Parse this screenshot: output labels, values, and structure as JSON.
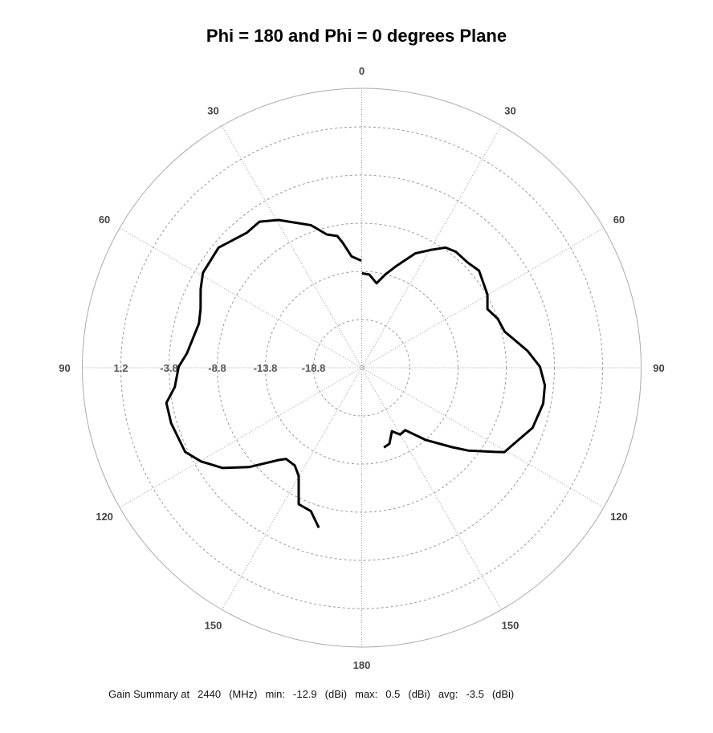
{
  "chart_data": {
    "type": "polar-line",
    "title": "Phi = 180 and Phi = 0 degrees Plane",
    "angle_unit": "degrees (theta)",
    "angle_zero": "top",
    "angle_ticks_left": [
      "30",
      "60",
      "90",
      "120",
      "150"
    ],
    "angle_ticks_right": [
      "30",
      "60",
      "90",
      "120",
      "150"
    ],
    "angle_tick_top": "0",
    "angle_tick_bottom": "180",
    "radial_ticks": [
      "1.2",
      "-3.8",
      "-8.8",
      "-13.8",
      "-18.8"
    ],
    "radial_tick_values": [
      1.2,
      -3.8,
      -8.8,
      -13.8,
      -18.8
    ],
    "rlim": [
      -23.8,
      5.2
    ],
    "grid": true,
    "line_color": "#000000",
    "grid_color": "#999999",
    "series": [
      {
        "side": "left (Phi = 180)",
        "theta": [
          0.2,
          5.2,
          8.6,
          10.5,
          14.7,
          19.6,
          29.4,
          35.0,
          40.5,
          50.0,
          59.1,
          64.0,
          70.0,
          74.8,
          85.3,
          89.7,
          95.9,
          100.2,
          106.2,
          115.5,
          120.3,
          125.8,
          131.4,
          138.0,
          140.3,
          145.6,
          149.8,
          155.2,
          160.5,
          165.0
        ],
        "gain_dBi": [
          -12.7,
          -12.2,
          -10.7,
          -9.9,
          -9.5,
          -8.1,
          -6.2,
          -5.3,
          -5.4,
          -4.4,
          -4.6,
          -5.2,
          -6.0,
          -6.3,
          -5.6,
          -4.8,
          -4.3,
          -3.2,
          -3.2,
          -3.5,
          -4.5,
          -6.0,
          -8.2,
          -10.9,
          -11.5,
          -11.5,
          -10.8,
          -8.2,
          -8.0,
          -6.6
        ]
      },
      {
        "side": "right (Phi = 0)",
        "theta": [
          0.2,
          4.7,
          10.0,
          14.3,
          18.6,
          25.1,
          30.5,
          34.9,
          39.0,
          45.3,
          50.4,
          59.8,
          65.0,
          70.2,
          75.8,
          84.2,
          89.7,
          95.5,
          101.2,
          109.4,
          115.5,
          120.6,
          122.2,
          127.9,
          131.3,
          138.5,
          145.1,
          150.2,
          154.6,
          160.0,
          164.5
        ],
        "gain_dBi": [
          -14.0,
          -14.1,
          -14.9,
          -13.8,
          -12.7,
          -10.7,
          -9.6,
          -8.6,
          -8.3,
          -8.3,
          -8.0,
          -8.7,
          -9.4,
          -8.8,
          -8.5,
          -6.5,
          -5.3,
          -4.7,
          -4.6,
          -5.0,
          -6.0,
          -6.6,
          -7.4,
          -9.8,
          -11.3,
          -13.8,
          -15.9,
          -15.8,
          -16.5,
          -15.4,
          -15.2
        ]
      }
    ]
  },
  "footer": {
    "label": "Gain Summary at",
    "frequency": "2440",
    "frequency_unit": "(MHz)",
    "min_label": "min:",
    "min_value": "-12.9",
    "min_unit": "(dBi)",
    "max_label": "max:",
    "max_value": "0.5",
    "max_unit": "(dBi)",
    "avg_label": "avg:",
    "avg_value": "-3.5",
    "avg_unit": "(dBi)"
  }
}
